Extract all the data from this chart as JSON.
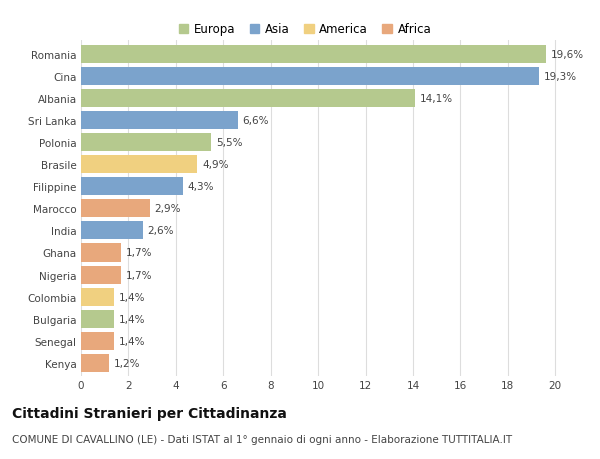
{
  "countries": [
    "Romania",
    "Cina",
    "Albania",
    "Sri Lanka",
    "Polonia",
    "Brasile",
    "Filippine",
    "Marocco",
    "India",
    "Ghana",
    "Nigeria",
    "Colombia",
    "Bulgaria",
    "Senegal",
    "Kenya"
  ],
  "values": [
    19.6,
    19.3,
    14.1,
    6.6,
    5.5,
    4.9,
    4.3,
    2.9,
    2.6,
    1.7,
    1.7,
    1.4,
    1.4,
    1.4,
    1.2
  ],
  "labels": [
    "19,6%",
    "19,3%",
    "14,1%",
    "6,6%",
    "5,5%",
    "4,9%",
    "4,3%",
    "2,9%",
    "2,6%",
    "1,7%",
    "1,7%",
    "1,4%",
    "1,4%",
    "1,4%",
    "1,2%"
  ],
  "continents": [
    "Europa",
    "Asia",
    "Europa",
    "Asia",
    "Europa",
    "America",
    "Asia",
    "Africa",
    "Asia",
    "Africa",
    "Africa",
    "America",
    "Europa",
    "Africa",
    "Africa"
  ],
  "continent_colors": {
    "Europa": "#b5c98e",
    "Asia": "#7ba3cc",
    "America": "#f0d080",
    "Africa": "#e8a87c"
  },
  "legend_order": [
    "Europa",
    "Asia",
    "America",
    "Africa"
  ],
  "title": "Cittadini Stranieri per Cittadinanza",
  "subtitle": "COMUNE DI CAVALLINO (LE) - Dati ISTAT al 1° gennaio di ogni anno - Elaborazione TUTTITALIA.IT",
  "xlim": [
    0,
    21
  ],
  "xticks": [
    0,
    2,
    4,
    6,
    8,
    10,
    12,
    14,
    16,
    18,
    20
  ],
  "background_color": "#ffffff",
  "grid_color": "#dddddd",
  "bar_height": 0.82,
  "title_fontsize": 10,
  "subtitle_fontsize": 7.5,
  "label_fontsize": 7.5,
  "tick_fontsize": 7.5,
  "legend_fontsize": 8.5
}
